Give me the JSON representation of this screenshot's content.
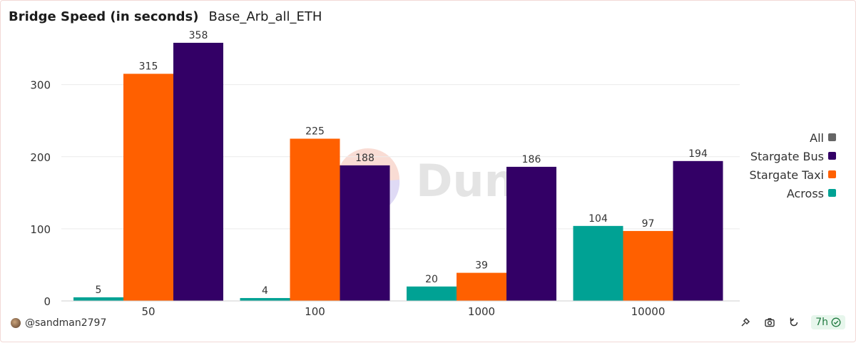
{
  "header": {
    "title": "Bridge Speed (in seconds)",
    "subtitle": "Base_Arb_all_ETH"
  },
  "footer": {
    "author": "@sandman2797",
    "age": "7h"
  },
  "icons": {
    "avatar": "avatar-icon",
    "share": "share-icon",
    "screenshot": "camera-icon",
    "refresh": "refresh-icon",
    "status": "check-circle-icon"
  },
  "watermark": "Dune",
  "chart_data": {
    "type": "bar",
    "categories": [
      "50",
      "100",
      "1000",
      "10000"
    ],
    "series": [
      {
        "name": "Across",
        "color": "#00a294",
        "values": [
          5,
          4,
          20,
          104
        ]
      },
      {
        "name": "Stargate Taxi",
        "color": "#ff6000",
        "values": [
          315,
          225,
          39,
          97
        ]
      },
      {
        "name": "Stargate Bus",
        "color": "#330066",
        "values": [
          358,
          188,
          186,
          194
        ]
      }
    ],
    "legend": [
      {
        "name": "All",
        "color": "#666666"
      },
      {
        "name": "Stargate Bus",
        "color": "#330066"
      },
      {
        "name": "Stargate Taxi",
        "color": "#ff6000"
      },
      {
        "name": "Across",
        "color": "#00a294"
      }
    ],
    "legend_position": "right",
    "yticks": [
      0,
      100,
      200,
      300
    ],
    "ylim": [
      0,
      380
    ],
    "grid": true,
    "data_labels": true
  }
}
